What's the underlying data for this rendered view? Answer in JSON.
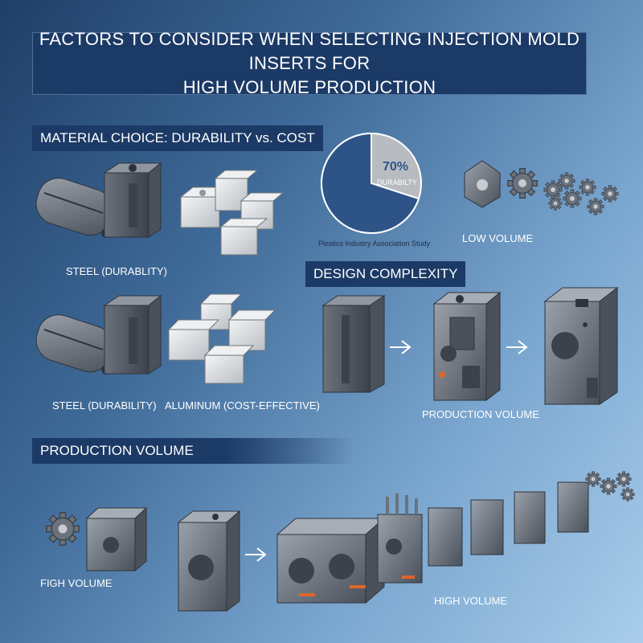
{
  "title": {
    "line1": "FACTORS TO CONSIDER WHEN SELECTING INJECTION MOLD INSERTS FOR",
    "line2": "HIGH VOLUME PRODUCTION"
  },
  "sections": {
    "material": "MATERIAL CHOICE: DURABILITY vs. COST",
    "design": "DESIGN COMPLEXITY",
    "production": "PRODUCTION VOLUME"
  },
  "labels": {
    "steel_1": "STEEL (DURABLITY)",
    "steel_2": "STEEL (DURABILITY)",
    "aluminum": "ALUMINUM (COST-EFFECTIVE)",
    "low_volume": "LOW VOLUME",
    "production_volume": "PRODUCTION VOLUME",
    "high_volume_left": "FIGH VOLUME",
    "high_volume_right": "HIGH VOLUME"
  },
  "pie": {
    "percent": "70%",
    "label": "DURABILTY",
    "source": "Plestics Industry Association Study"
  },
  "chart_data": {
    "type": "pie",
    "values": [
      70,
      30
    ],
    "colors": [
      "#2e5487",
      "#b8bcc1"
    ]
  },
  "colors": {
    "navy": "#1c3a66",
    "steel": "#5f6670",
    "aluminum": "#d6d9dc",
    "accent": "#e0652a"
  }
}
